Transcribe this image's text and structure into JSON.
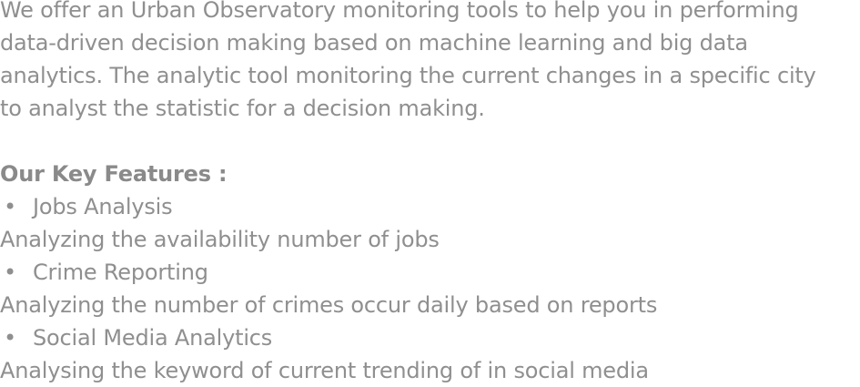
{
  "intro": {
    "line1": "We offer an Urban Observatory monitoring tools to help you  in performing",
    "line2": "data-driven decision making based on machine learning and big data",
    "line3": "analytics. The analytic tool monitoring the current changes in a specific city",
    "line4": "to analyst the statistic for a decision making."
  },
  "features": {
    "heading": "Our Key Features :",
    "bullet_glyph": "•",
    "items": [
      {
        "title": "Jobs Analysis",
        "description": "Analyzing the availability number of jobs"
      },
      {
        "title": "Crime Reporting",
        "description": "Analyzing the number of crimes occur daily based on reports"
      },
      {
        "title": "Social Media Analytics",
        "description": "Analysing the keyword of current trending of in social media"
      }
    ]
  },
  "colors": {
    "text": "#8f8f8f",
    "background": "#ffffff"
  }
}
